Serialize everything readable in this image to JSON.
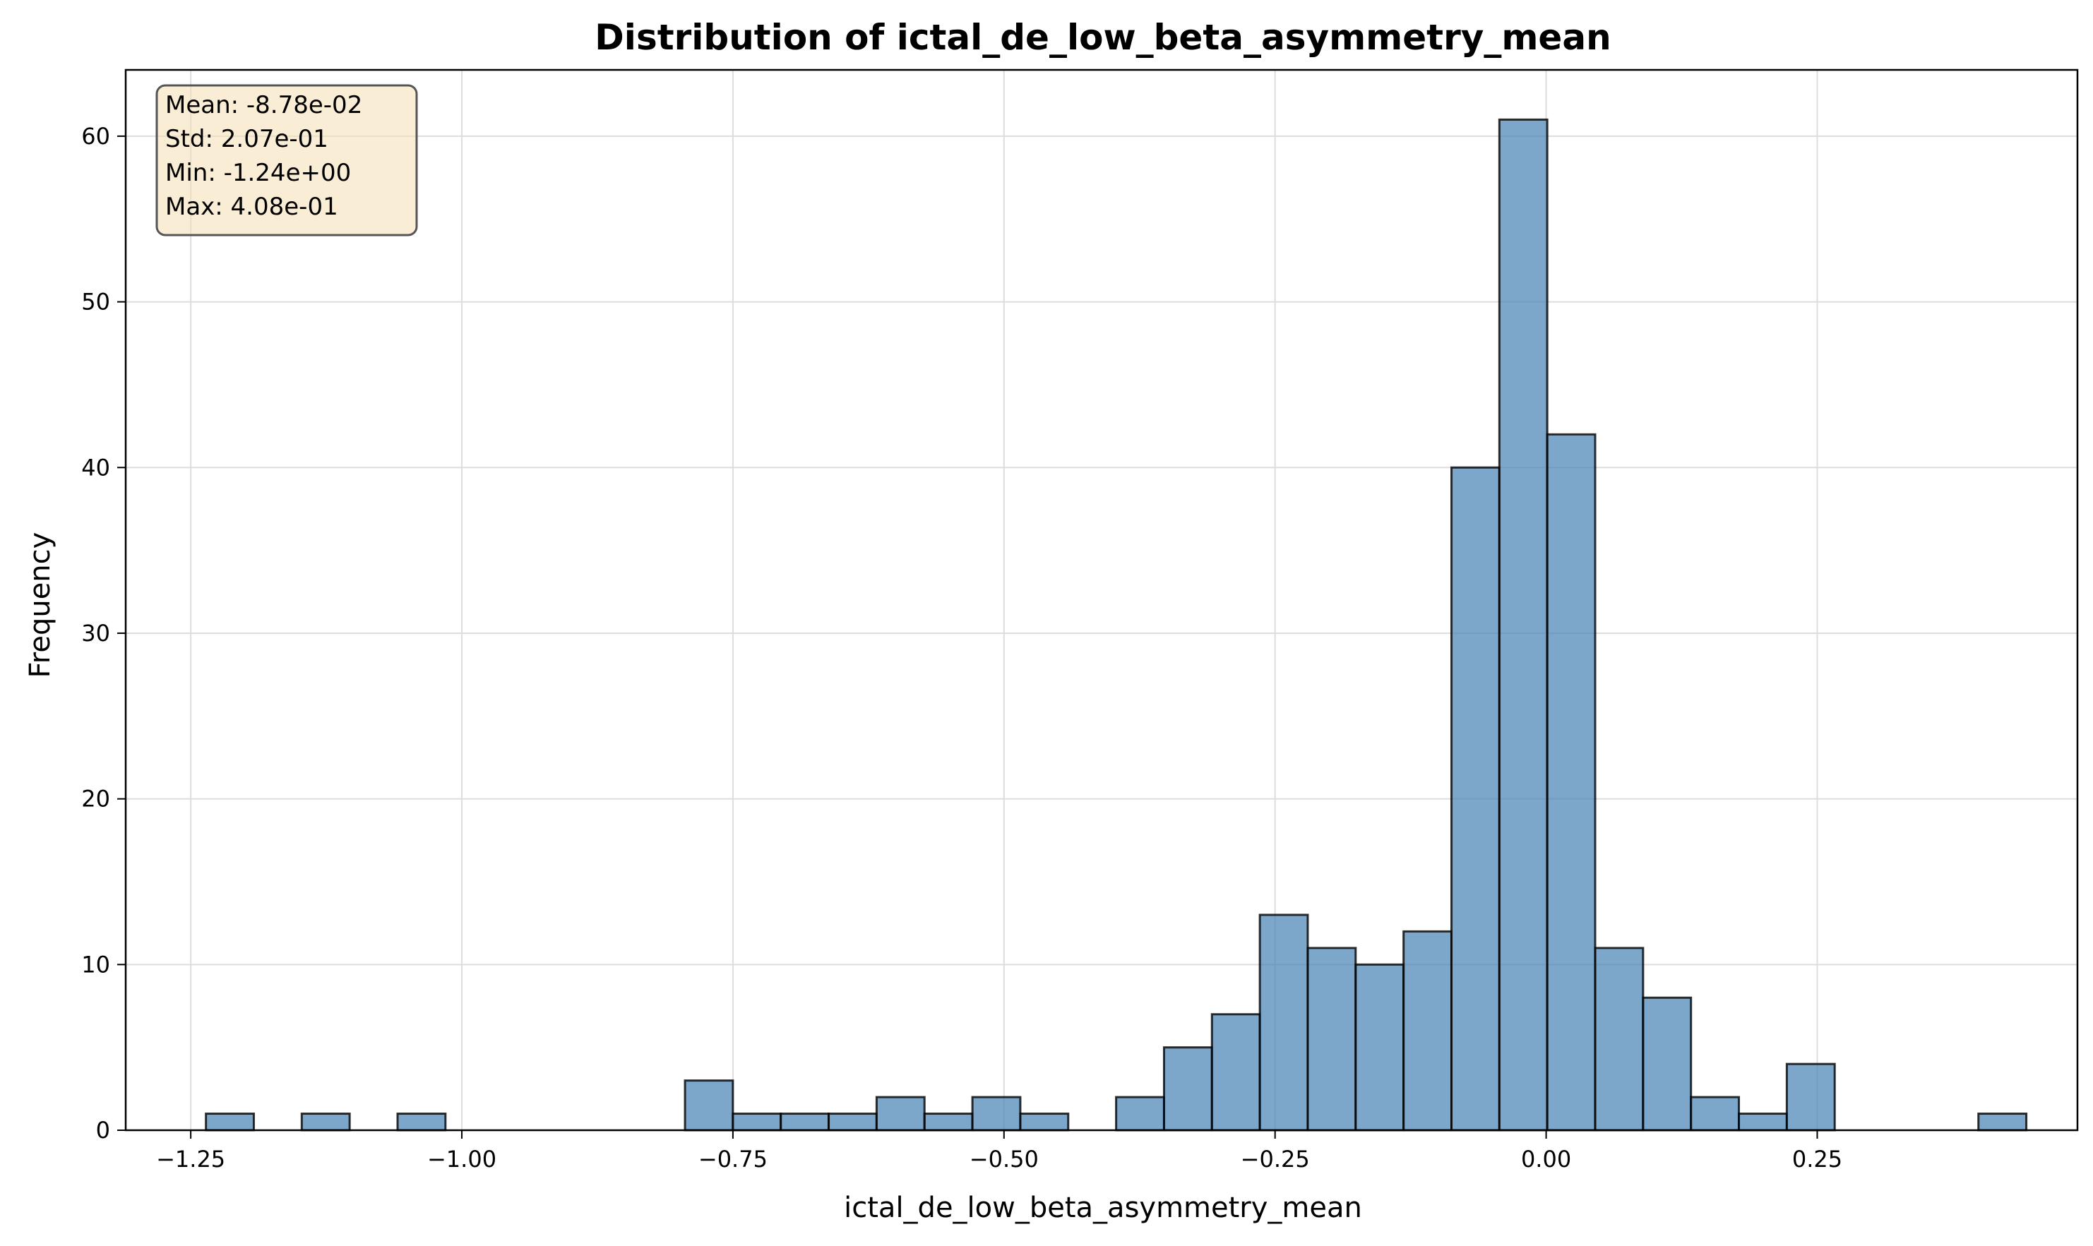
{
  "chart_data": {
    "type": "bar",
    "title": "Distribution of ictal_de_low_beta_asymmetry_mean",
    "xlabel": "ictal_de_low_beta_asymmetry_mean",
    "ylabel": "Frequency",
    "xlim": [
      -1.31,
      0.49
    ],
    "ylim": [
      0,
      64
    ],
    "xticks": [
      -1.25,
      -1.0,
      -0.75,
      -0.5,
      -0.25,
      0.0,
      0.25
    ],
    "xtick_labels": [
      "−1.25",
      "−1.00",
      "−0.75",
      "−0.50",
      "−0.25",
      "0.00",
      "0.25"
    ],
    "yticks": [
      0,
      10,
      20,
      30,
      40,
      50,
      60
    ],
    "ytick_labels": [
      "0",
      "10",
      "20",
      "30",
      "40",
      "50",
      "60"
    ],
    "grid": true,
    "bar_color": "#4682b4",
    "bar_edge_color": "#000000",
    "bin_start": -1.236,
    "bin_width": 0.04418,
    "counts": [
      1,
      0,
      1,
      0,
      1,
      0,
      0,
      0,
      0,
      0,
      3,
      1,
      1,
      1,
      2,
      1,
      2,
      1,
      0,
      2,
      5,
      7,
      13,
      11,
      10,
      12,
      40,
      61,
      42,
      11,
      8,
      2,
      1,
      4,
      0,
      0,
      0,
      1
    ],
    "stats_box": {
      "lines": [
        "Mean: -8.78e-02",
        "Std: 2.07e-01",
        "Min: -1.24e+00",
        "Max: 4.08e-01"
      ],
      "background": "#f5deb3",
      "border": "#555555"
    }
  }
}
